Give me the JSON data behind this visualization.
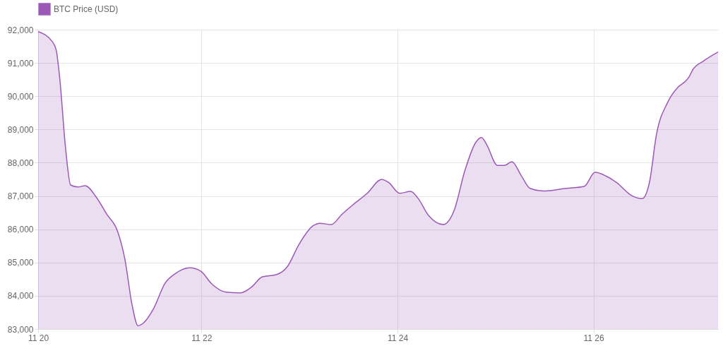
{
  "chart_data": {
    "type": "area",
    "x": [
      "--11-20T08:00",
      "--11-20T11:32",
      "--11-20T12:26",
      "--11-20T13:18",
      "--11-20T14:43",
      "--11-20T15:58",
      "--11-20T17:44",
      "--11-20T19:31",
      "--11-20T22:09",
      "--11-21T00:49",
      "--11-21T03:29",
      "--11-21T05:15",
      "--11-21T07:00",
      "--11-21T08:27",
      "--11-21T09:40",
      "--11-21T12:20",
      "--11-21T15:00",
      "--11-21T17:38",
      "--11-21T21:12",
      "--11-21T23:51",
      "--11-22T02:30",
      "--11-22T06:03",
      "--11-22T09:35",
      "--11-22T12:14",
      "--11-22T14:54",
      "--11-22T18:26",
      "--11-22T21:06",
      "--11-22T23:46",
      "--11-23T03:17",
      "--11-23T05:04",
      "--11-23T07:44",
      "--11-23T10:24",
      "--11-23T13:02",
      "--11-23T16:35",
      "--11-23T20:08",
      "--11-23T21:53",
      "--11-24T00:33",
      "--11-24T03:13",
      "--11-24T04:59",
      "--11-24T07:38",
      "--11-24T11:11",
      "--11-24T13:51",
      "--11-24T16:31",
      "--11-24T19:09",
      "--11-24T20:34",
      "--11-24T21:49",
      "--11-25T00:29",
      "--11-25T02:14",
      "--11-25T04:00",
      "--11-25T06:19",
      "--11-25T08:27",
      "--11-25T11:59",
      "--11-25T17:18",
      "--11-25T21:43",
      "--11-26T00:23",
      "--11-26T03:03",
      "--11-26T05:41",
      "--11-26T09:14",
      "--11-26T11:54",
      "--11-26T13:41",
      "--11-26T15:26",
      "--11-26T18:06",
      "--11-26T20:46",
      "--11-26T22:31",
      "--11-26T23:24",
      "--11-27T00:17",
      "--11-27T02:57",
      "--11-27T06:30"
    ],
    "series": [
      {
        "name": "BTC Price (USD)",
        "color": "#9b59b6",
        "values": [
          91940,
          91630,
          91380,
          90530,
          88440,
          87330,
          87270,
          87310,
          86980,
          86450,
          85930,
          85100,
          83730,
          83100,
          83170,
          83630,
          84360,
          84670,
          84840,
          84740,
          84360,
          84110,
          84090,
          84260,
          84570,
          84640,
          84890,
          85520,
          86100,
          86180,
          86140,
          86450,
          86730,
          87080,
          87500,
          87400,
          87080,
          87140,
          86940,
          86410,
          86140,
          86560,
          87770,
          88610,
          88760,
          88550,
          87920,
          87920,
          88030,
          87610,
          87230,
          87150,
          87230,
          87290,
          87710,
          87600,
          87400,
          87020,
          86920,
          87400,
          88860,
          89800,
          90280,
          90450,
          90580,
          90790,
          91060,
          91330
        ]
      }
    ],
    "xlim": [
      "--11-20T08:00",
      "--11-27T06:30"
    ],
    "xticks": [
      {
        "value": "--11-20T08:00",
        "label": "11 20"
      },
      {
        "value": "--11-22",
        "label": "11 22"
      },
      {
        "value": "--11-24",
        "label": "11 24"
      },
      {
        "value": "--11-26",
        "label": "11 26"
      }
    ],
    "ylim": [
      83000,
      92000
    ],
    "yticks": [
      {
        "value": 83000,
        "label": "83,000"
      },
      {
        "value": 84000,
        "label": "84,000"
      },
      {
        "value": 85000,
        "label": "85,000"
      },
      {
        "value": 86000,
        "label": "86,000"
      },
      {
        "value": 87000,
        "label": "87,000"
      },
      {
        "value": 88000,
        "label": "88,000"
      },
      {
        "value": 89000,
        "label": "89,000"
      },
      {
        "value": 90000,
        "label": "90,000"
      },
      {
        "value": 91000,
        "label": "91,000"
      },
      {
        "value": 92000,
        "label": "92,000"
      }
    ],
    "grid": true,
    "legend": "top",
    "marker": "none"
  }
}
